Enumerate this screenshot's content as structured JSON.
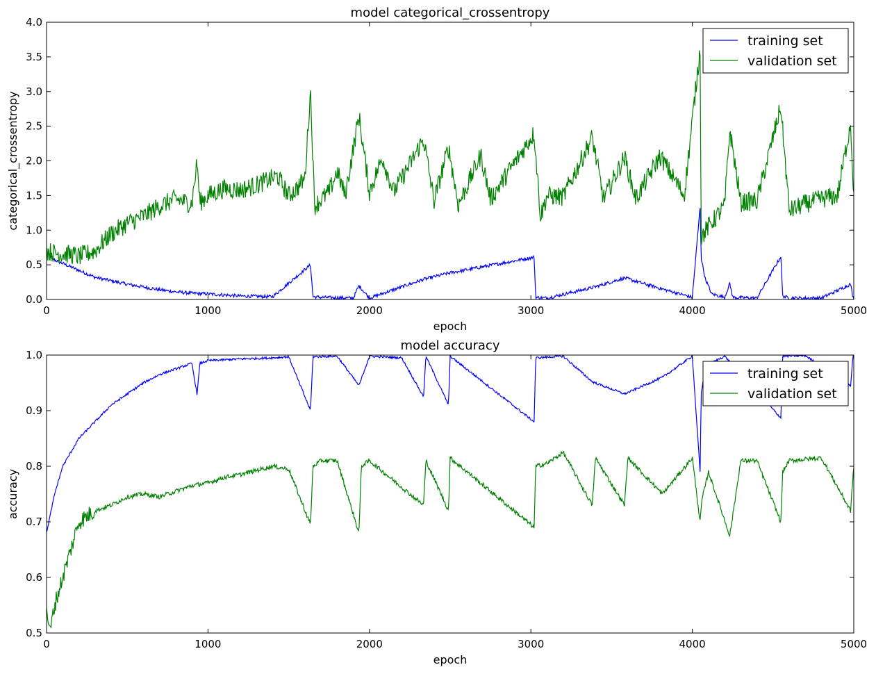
{
  "chart_data": [
    {
      "type": "line",
      "title": "model categorical_crossentropy",
      "xlabel": "epoch",
      "ylabel": "categorical_crossentropy",
      "xlim": [
        0,
        5000
      ],
      "ylim": [
        0.0,
        4.0
      ],
      "xticks": [
        "0",
        "1000",
        "2000",
        "3000",
        "4000",
        "5000"
      ],
      "yticks": [
        "0.0",
        "0.5",
        "1.0",
        "1.5",
        "2.0",
        "2.5",
        "3.0",
        "3.5",
        "4.0"
      ],
      "legend_position": "top-right",
      "series": [
        {
          "name": "training set",
          "color": "#0000ff",
          "x": [
            0,
            50,
            100,
            200,
            300,
            400,
            500,
            600,
            700,
            800,
            900,
            1000,
            1200,
            1400,
            1635,
            1650,
            1700,
            1900,
            1935,
            2000,
            2335,
            2490,
            3020,
            3030,
            3100,
            3380,
            3580,
            3815,
            4000,
            4048,
            4055,
            4080,
            4120,
            4200,
            4232,
            4250,
            4400,
            4548,
            4560,
            4600,
            4800,
            4980,
            4995,
            5000
          ],
          "y": [
            0.68,
            0.57,
            0.52,
            0.42,
            0.32,
            0.27,
            0.22,
            0.18,
            0.14,
            0.11,
            0.09,
            0.08,
            0.05,
            0.04,
            0.5,
            0.04,
            0.03,
            0.02,
            0.2,
            0.02,
            0.29,
            0.38,
            0.61,
            0.03,
            0.02,
            0.17,
            0.31,
            0.15,
            0.03,
            1.33,
            0.6,
            0.3,
            0.08,
            0.03,
            0.23,
            0.03,
            0.02,
            0.62,
            0.05,
            0.02,
            0.02,
            0.22,
            0.03,
            0.02
          ]
        },
        {
          "name": "validation set",
          "color": "#008000",
          "x": [
            0,
            50,
            100,
            150,
            200,
            300,
            400,
            500,
            600,
            700,
            800,
            900,
            932,
            950,
            1000,
            1100,
            1200,
            1300,
            1430,
            1500,
            1550,
            1600,
            1635,
            1660,
            1750,
            1800,
            1850,
            1935,
            2000,
            2080,
            2150,
            2250,
            2335,
            2400,
            2490,
            2550,
            2690,
            2750,
            3020,
            3060,
            3100,
            3200,
            3380,
            3450,
            3580,
            3650,
            3800,
            3950,
            4048,
            4055,
            4100,
            4200,
            4232,
            4300,
            4400,
            4548,
            4600,
            4700,
            4800,
            4900,
            4980,
            5000
          ],
          "y": [
            0.7,
            0.67,
            0.66,
            0.65,
            0.62,
            0.7,
            0.95,
            1.1,
            1.2,
            1.35,
            1.45,
            1.38,
            1.98,
            1.4,
            1.5,
            1.6,
            1.58,
            1.65,
            1.78,
            1.5,
            1.6,
            1.75,
            3.02,
            1.35,
            1.55,
            1.85,
            1.5,
            2.65,
            1.55,
            2.05,
            1.55,
            1.95,
            2.32,
            1.42,
            2.2,
            1.36,
            2.08,
            1.45,
            2.4,
            1.2,
            1.5,
            1.48,
            2.34,
            1.45,
            2.05,
            1.45,
            2.07,
            1.5,
            3.62,
            0.9,
            1.05,
            1.35,
            2.45,
            1.4,
            1.42,
            2.78,
            1.28,
            1.38,
            1.45,
            1.5,
            2.55,
            1.5
          ]
        }
      ]
    },
    {
      "type": "line",
      "title": "model accuracy",
      "xlabel": "epoch",
      "ylabel": "accuracy",
      "xlim": [
        0,
        5000
      ],
      "ylim": [
        0.5,
        1.0
      ],
      "xticks": [
        "0",
        "1000",
        "2000",
        "3000",
        "4000",
        "5000"
      ],
      "yticks": [
        "0.5",
        "0.6",
        "0.7",
        "0.8",
        "0.9",
        "1.0"
      ],
      "legend_position": "top-right",
      "series": [
        {
          "name": "training set",
          "color": "#0000ff",
          "x": [
            0,
            50,
            100,
            200,
            300,
            400,
            500,
            600,
            700,
            800,
            900,
            932,
            950,
            1000,
            1200,
            1400,
            1500,
            1635,
            1650,
            1800,
            1935,
            2000,
            2200,
            2335,
            2350,
            2490,
            2500,
            3020,
            3030,
            3200,
            3380,
            3580,
            3815,
            4000,
            4048,
            4055,
            4080,
            4200,
            4548,
            4560,
            4700,
            4980,
            4995,
            5000
          ],
          "y": [
            0.68,
            0.75,
            0.8,
            0.85,
            0.88,
            0.91,
            0.93,
            0.95,
            0.965,
            0.975,
            0.985,
            0.93,
            0.985,
            0.99,
            0.993,
            0.995,
            0.997,
            0.9,
            0.997,
            0.998,
            0.945,
            0.998,
            0.995,
            0.925,
            0.998,
            0.91,
            0.998,
            0.88,
            0.995,
            0.998,
            0.952,
            0.93,
            0.96,
            0.998,
            0.79,
            0.93,
            0.98,
            0.998,
            0.887,
            0.998,
            0.999,
            0.945,
            0.999,
            0.999
          ]
        },
        {
          "name": "validation set",
          "color": "#008000",
          "x": [
            0,
            20,
            50,
            100,
            150,
            200,
            300,
            400,
            500,
            600,
            700,
            800,
            900,
            1000,
            1100,
            1200,
            1400,
            1500,
            1635,
            1650,
            1700,
            1800,
            1935,
            1950,
            2000,
            2335,
            2350,
            2490,
            2500,
            3020,
            3030,
            3100,
            3200,
            3380,
            3400,
            3580,
            3600,
            3815,
            4000,
            4048,
            4060,
            4100,
            4232,
            4300,
            4400,
            4548,
            4560,
            4600,
            4800,
            4980,
            5000
          ],
          "y": [
            0.55,
            0.5,
            0.55,
            0.6,
            0.65,
            0.7,
            0.72,
            0.73,
            0.745,
            0.75,
            0.745,
            0.755,
            0.765,
            0.77,
            0.78,
            0.785,
            0.8,
            0.795,
            0.695,
            0.8,
            0.81,
            0.81,
            0.68,
            0.8,
            0.81,
            0.73,
            0.81,
            0.72,
            0.815,
            0.69,
            0.8,
            0.805,
            0.825,
            0.73,
            0.815,
            0.73,
            0.815,
            0.75,
            0.815,
            0.7,
            0.74,
            0.79,
            0.675,
            0.81,
            0.81,
            0.7,
            0.79,
            0.81,
            0.815,
            0.72,
            0.8
          ]
        }
      ]
    }
  ]
}
